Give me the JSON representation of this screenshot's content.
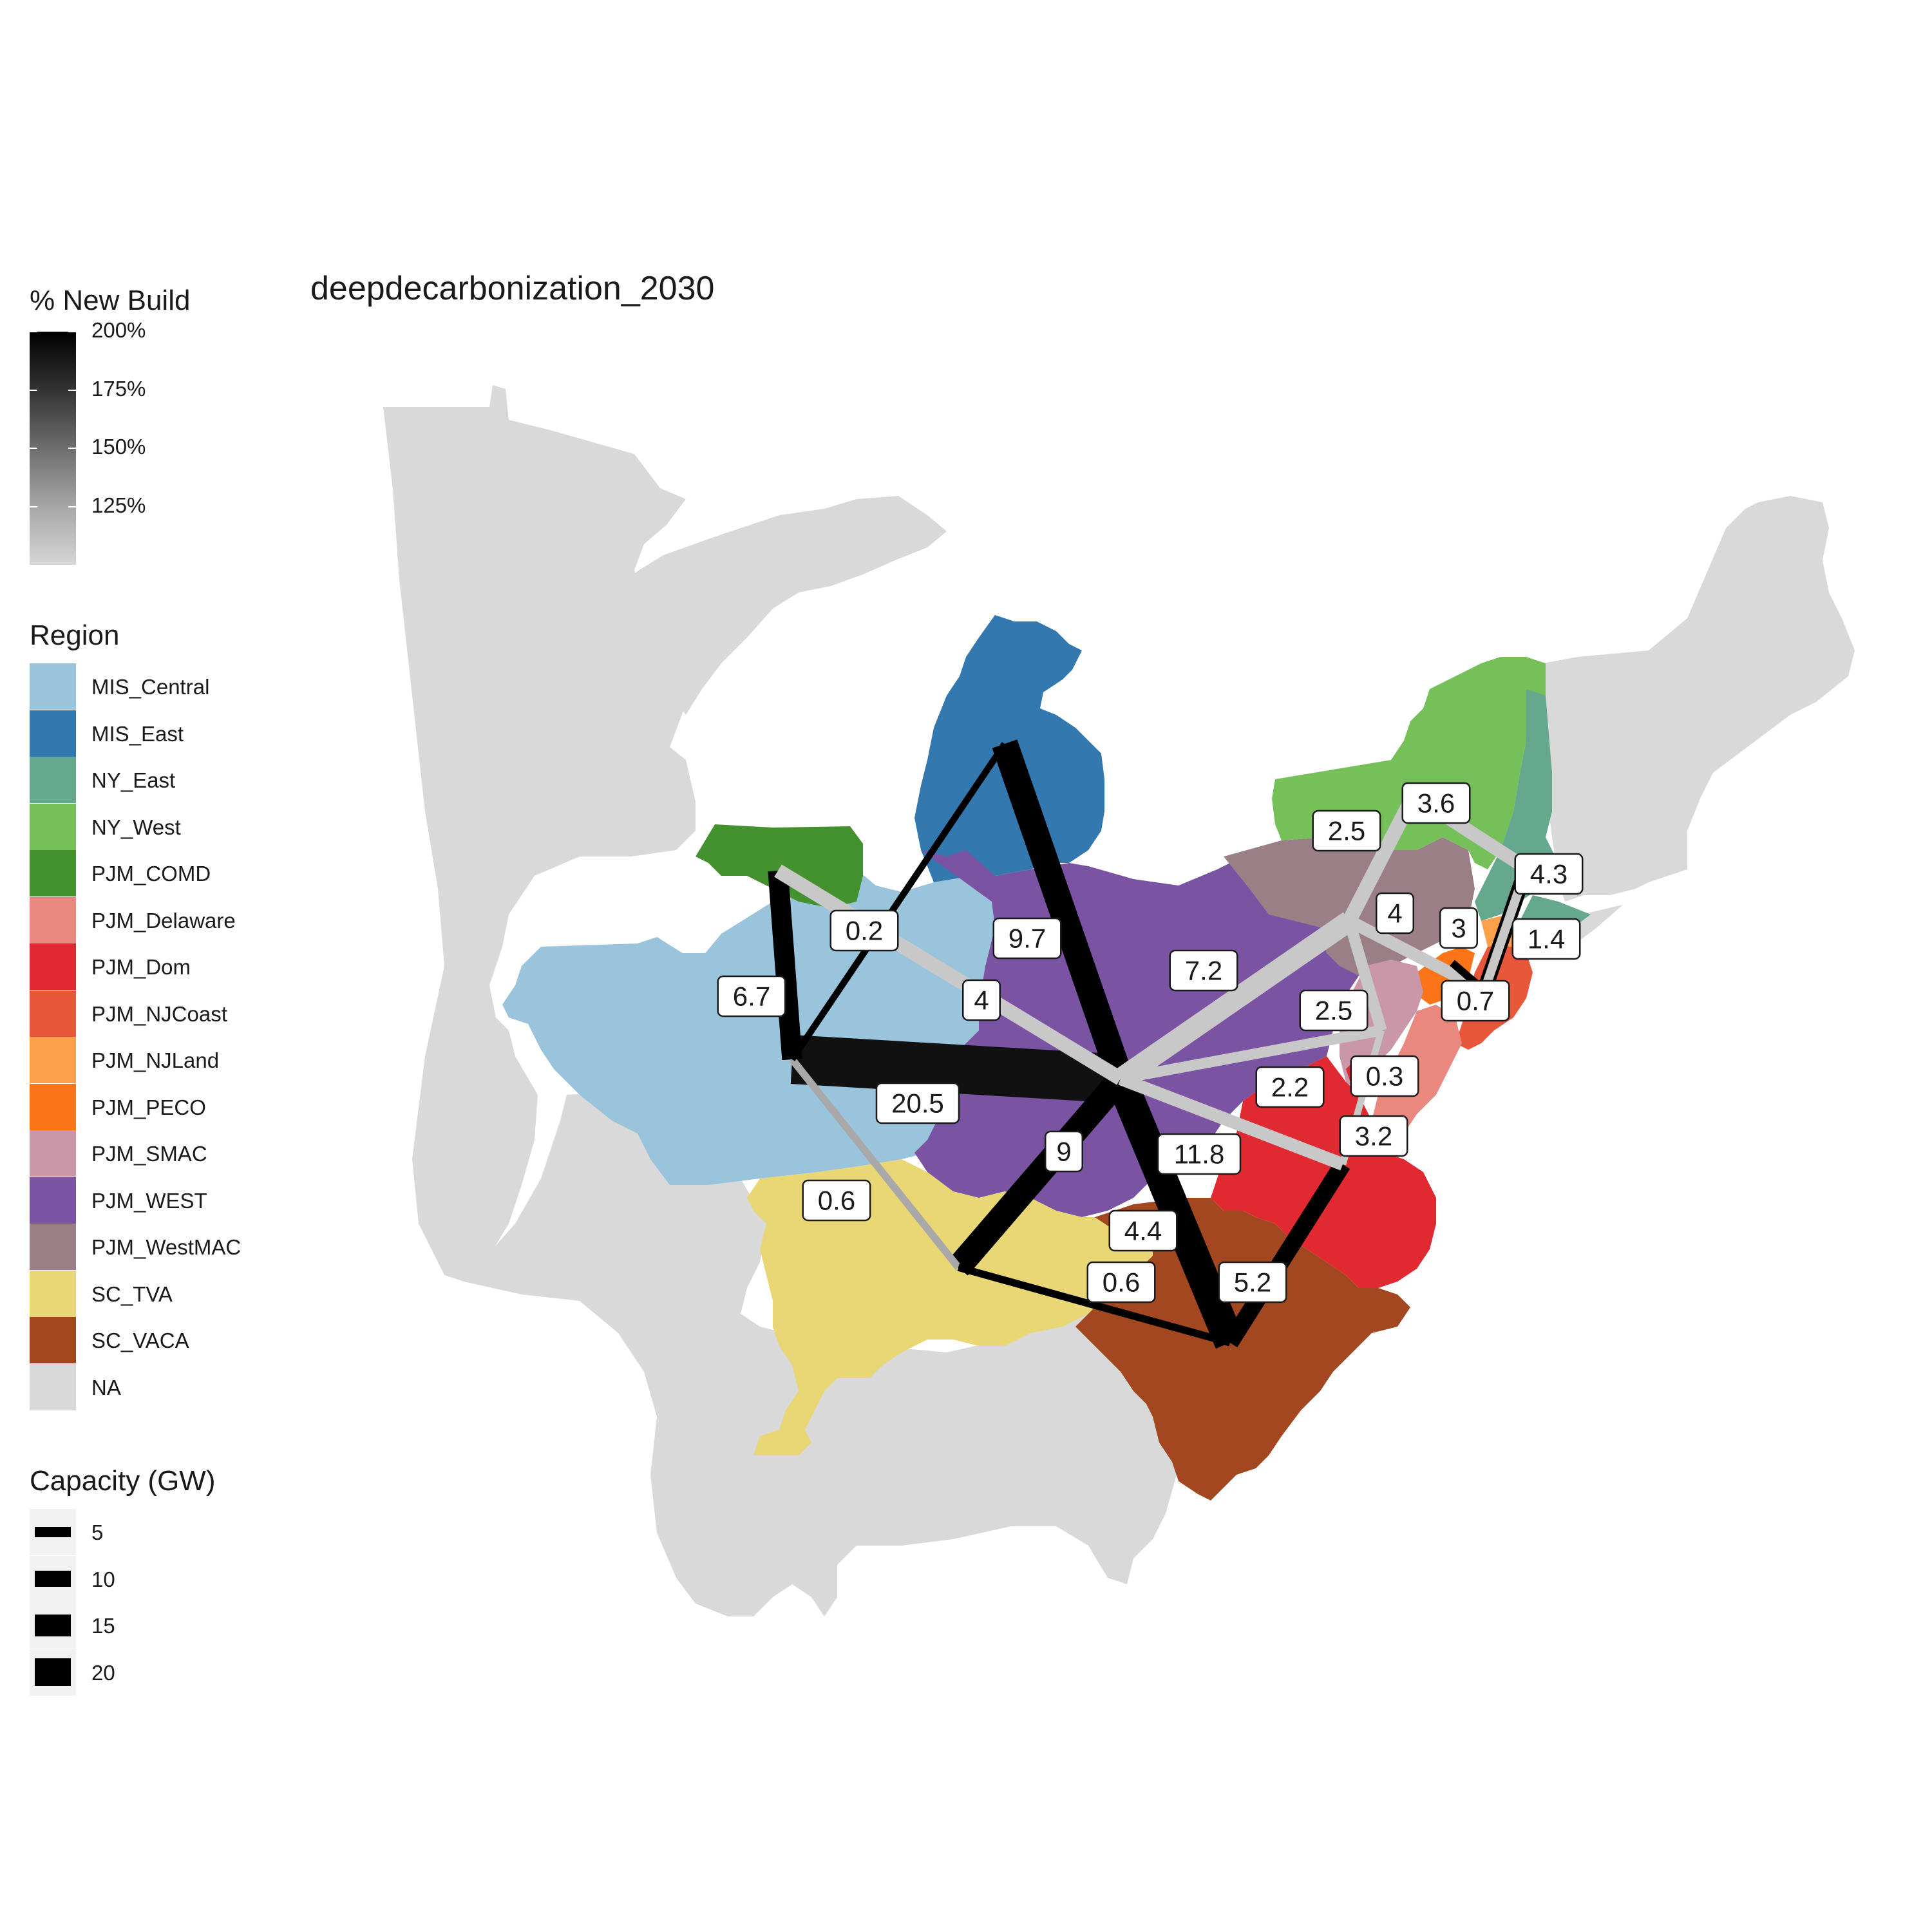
{
  "title": "deepdecarbonization_2030",
  "new_build_legend": {
    "title": "% New Build",
    "ticks": [
      "200%",
      "175%",
      "150%",
      "125%"
    ],
    "gradient": [
      "#000000",
      "#d6d6d6"
    ]
  },
  "region_legend": {
    "title": "Region",
    "items": [
      {
        "label": "MIS_Central",
        "color": "#9ac3dc"
      },
      {
        "label": "MIS_East",
        "color": "#3478b0"
      },
      {
        "label": "NY_East",
        "color": "#66a88e"
      },
      {
        "label": "NY_West",
        "color": "#75c058"
      },
      {
        "label": "PJM_COMD",
        "color": "#43922f"
      },
      {
        "label": "PJM_Delaware",
        "color": "#e8887f"
      },
      {
        "label": "PJM_Dom",
        "color": "#e12932"
      },
      {
        "label": "PJM_NJCoast",
        "color": "#e9573a"
      },
      {
        "label": "PJM_NJLand",
        "color": "#fca04a"
      },
      {
        "label": "PJM_PECO",
        "color": "#fb7418"
      },
      {
        "label": "PJM_SMAC",
        "color": "#c997a8"
      },
      {
        "label": "PJM_WEST",
        "color": "#7a53a2"
      },
      {
        "label": "PJM_WestMAC",
        "color": "#9b7f87"
      },
      {
        "label": "SC_TVA",
        "color": "#e9d675"
      },
      {
        "label": "SC_VACA",
        "color": "#a24720"
      },
      {
        "label": "NA",
        "color": "#d9d9d9"
      }
    ]
  },
  "capacity_legend": {
    "title": "Capacity (GW)",
    "items": [
      {
        "label": "5",
        "gw": 5
      },
      {
        "label": "10",
        "gw": 10
      },
      {
        "label": "15",
        "gw": 15
      },
      {
        "label": "20",
        "gw": 20
      }
    ]
  },
  "flows": [
    {
      "label": "0.2",
      "gw": 0.2,
      "color": "#000000"
    },
    {
      "label": "9.7",
      "gw": 9.7,
      "color": "#000000"
    },
    {
      "label": "6.7",
      "gw": 6.7,
      "color": "#000000"
    },
    {
      "label": "4",
      "gw": 4,
      "color": "#c8c8c8"
    },
    {
      "label": "20.5",
      "gw": 20.5,
      "color": "#111111"
    },
    {
      "label": "0.6",
      "gw": 0.6,
      "color": "#a9a9a9"
    },
    {
      "label": "9",
      "gw": 9,
      "color": "#000000"
    },
    {
      "label": "11.8",
      "gw": 11.8,
      "color": "#000000"
    },
    {
      "label": "4.4",
      "gw": 4.4,
      "color": "#000000"
    },
    {
      "label": "0.6",
      "gw": 0.6,
      "color": "#000000"
    },
    {
      "label": "5.2",
      "gw": 5.2,
      "color": "#000000"
    },
    {
      "label": "7.2",
      "gw": 7.2,
      "color": "#c8c8c8"
    },
    {
      "label": "2.2",
      "gw": 2.2,
      "color": "#c8c8c8"
    },
    {
      "label": "3.2",
      "gw": 3.2,
      "color": "#c8c8c8"
    },
    {
      "label": "2.5",
      "gw": 2.5,
      "color": "#c8c8c8"
    },
    {
      "label": "4",
      "gw": 4,
      "color": "#c8c8c8"
    },
    {
      "label": "3",
      "gw": 3,
      "color": "#c8c8c8"
    },
    {
      "label": "2.5",
      "gw": 2.5,
      "color": "#c8c8c8"
    },
    {
      "label": "3.6",
      "gw": 3.6,
      "color": "#c8c8c8"
    },
    {
      "label": "4.3",
      "gw": 4.3,
      "color": "#000000"
    },
    {
      "label": "1.4",
      "gw": 1.4,
      "color": "#c8c8c8"
    },
    {
      "label": "0.7",
      "gw": 0.7,
      "color": "#000000"
    },
    {
      "label": "0.3",
      "gw": 0.3,
      "color": "#c8c8c8"
    }
  ]
}
